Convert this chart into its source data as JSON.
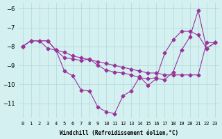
{
  "xlabel": "Windchill (Refroidissement éolien,°C)",
  "x": [
    0,
    1,
    2,
    3,
    4,
    5,
    6,
    7,
    8,
    9,
    10,
    11,
    12,
    13,
    14,
    15,
    16,
    17,
    18,
    19,
    20,
    21,
    22,
    23
  ],
  "line1": [
    -8.0,
    -7.7,
    -7.7,
    -7.7,
    -8.2,
    -8.3,
    -8.5,
    -8.6,
    -8.7,
    -8.8,
    -8.9,
    -9.0,
    -9.1,
    -9.2,
    -9.3,
    -9.4,
    -9.4,
    -9.5,
    -9.5,
    -9.5,
    -9.5,
    -9.5,
    -7.8,
    -7.8
  ],
  "line2": [
    -8.0,
    -7.7,
    -7.7,
    -7.7,
    -8.2,
    -9.3,
    -9.55,
    -10.3,
    -10.35,
    -11.2,
    -11.45,
    -11.55,
    -10.6,
    -10.35,
    -9.6,
    -10.05,
    -9.7,
    -9.75,
    -9.35,
    -8.2,
    -7.5,
    -6.1,
    -8.1,
    -7.8
  ],
  "line3": [
    -8.0,
    -7.7,
    -7.7,
    -8.1,
    -8.2,
    -8.6,
    -8.65,
    -8.75,
    -8.65,
    -9.0,
    -9.25,
    -9.35,
    -9.4,
    -9.5,
    -9.65,
    -9.7,
    -9.65,
    -8.35,
    -7.65,
    -7.2,
    -7.2,
    -7.4,
    -8.1,
    -7.8
  ],
  "color": "#993399",
  "bg_color": "#d4f0f0",
  "grid_color": "#b0d8d8",
  "ylim": [
    -11.8,
    -5.7
  ],
  "yticks": [
    -11,
    -10,
    -9,
    -8,
    -7,
    -6
  ],
  "figsize": [
    3.2,
    2.0
  ],
  "dpi": 100
}
